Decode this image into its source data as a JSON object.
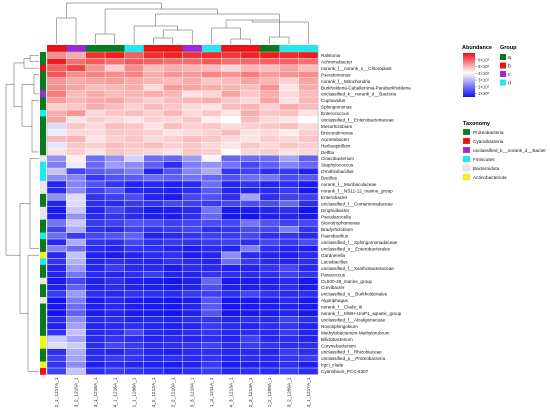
{
  "chart_data": {
    "type": "heatmap",
    "title": "",
    "columns": [
      "2_1_1217A_1",
      "3_2_1215A_1",
      "3_1_1216A_1",
      "4_1_1216A_1",
      "1_1_1208A_1",
      "4_2_1212A_1",
      "2_2_1210A_1",
      "3_3_1210A_1",
      "1_3_1211A_1",
      "4_3_1213A_1",
      "2_3_1213A_1",
      "1_2_1209A_1",
      "3_2_1209A_1",
      "4_1_1217A_1"
    ],
    "column_group": [
      "b",
      "c",
      "a",
      "a",
      "d",
      "b",
      "b",
      "c",
      "d",
      "b",
      "b",
      "a",
      "d",
      "d"
    ],
    "rows": [
      "Ralstonia",
      "Achromobacter",
      "norank_f__norank_o__Chloroplast",
      "Pseudomonas",
      "norank_f__Mitochondria",
      "Burkholderia-Caballeronia-Paraburkholderia",
      "unclassified_k__norank_d__Bacteria",
      "Cupriavidus",
      "Sphingomonas",
      "Enterococcus",
      "unclassified_f__Enterobacteriaceae",
      "Mesorhizobium",
      "Brevundimonas",
      "Acinetobacter",
      "Herbaspirillum",
      "Delftia",
      "Cloacibacterium",
      "Staphylococcus",
      "Ornithinibacillus",
      "Bacillus",
      "norank_f__Muribaculaceae",
      "norank_f__NS11-12_marine_group",
      "Enterobacter",
      "unclassified_f__Comamonadaceae",
      "Dinghuibacter",
      "Pseudarcicella",
      "Stenotrophomonas",
      "Bradyrhizobium",
      "Paenibacillus",
      "unclassified_f__Sphingomonadaceae",
      "unclassified_o__Enterobacterales",
      "Gardnerella",
      "Lactobacillus",
      "unclassified_f__Xanthobacteraceae",
      "Paracoccus",
      "CL500-29_marine_group",
      "Curvibacter",
      "unclassified_o__Burkholderiales",
      "Algoriphagus",
      "norank_f__Clade_III",
      "norank_f__MWH-UniP1_aquatic_group",
      "unclassified_f__Alcaligenaceae",
      "Novosphingobium",
      "Methylobacterium-Methylorubrum",
      "Bifidobacterium",
      "Corynebacterium",
      "unclassified_f__Rhizobiaceae",
      "unclassified_p__Proteobacteria",
      "hgcI_clade",
      "Cyanobium_PCC-6307"
    ],
    "row_taxonomy": [
      "Proteobacteria",
      "Proteobacteria",
      "Cyanobacteria",
      "Proteobacteria",
      "Proteobacteria",
      "Proteobacteria",
      "unclassified_k__norank_d__Bacter",
      "Proteobacteria",
      "Proteobacteria",
      "Firmicutes",
      "Proteobacteria",
      "Proteobacteria",
      "Proteobacteria",
      "Proteobacteria",
      "Proteobacteria",
      "Proteobacteria",
      "Bacteroidota",
      "Firmicutes",
      "Firmicutes",
      "Firmicutes",
      "Bacteroidota",
      "Bacteroidota",
      "Proteobacteria",
      "Proteobacteria",
      "Bacteroidota",
      "Bacteroidota",
      "Proteobacteria",
      "Proteobacteria",
      "Firmicutes",
      "Proteobacteria",
      "Proteobacteria",
      "Actinobacteriota",
      "Firmicutes",
      "Proteobacteria",
      "Proteobacteria",
      "Bacteroidota",
      "Proteobacteria",
      "Proteobacteria",
      "Bacteroidota",
      "Proteobacteria",
      "Proteobacteria",
      "Proteobacteria",
      "Proteobacteria",
      "Proteobacteria",
      "Actinobacteriota",
      "Actinobacteriota",
      "Proteobacteria",
      "Proteobacteria",
      "Actinobacteriota",
      "Cyanobacteria"
    ],
    "values": [
      [
        5.2,
        4.8,
        6.5,
        6.8,
        5.8,
        6.6,
        6.7,
        6.5,
        6.6,
        6.4,
        6.7,
        6.8,
        6.6,
        6.8
      ],
      [
        6.8,
        5.6,
        5.9,
        5.6,
        5.9,
        5.8,
        5.6,
        5.6,
        5.9,
        5.6,
        5.7,
        5.8,
        5.8,
        5.6
      ],
      [
        5.8,
        6.2,
        5.1,
        4.4,
        5.2,
        4.6,
        4.8,
        4.7,
        4.6,
        4.3,
        4.7,
        4.6,
        4.9,
        4.6
      ],
      [
        5.9,
        5.2,
        5.3,
        5.2,
        5.3,
        4.8,
        5.1,
        5.0,
        5.3,
        5.1,
        5.4,
        5.0,
        5.1,
        5.2
      ],
      [
        5.1,
        4.8,
        4.9,
        5.0,
        4.8,
        4.7,
        4.6,
        4.8,
        4.5,
        4.6,
        4.9,
        4.7,
        4.4,
        4.9
      ],
      [
        5.2,
        4.9,
        4.6,
        4.7,
        4.8,
        4.3,
        5.0,
        4.9,
        4.8,
        4.7,
        4.6,
        5.1,
        4.2,
        4.8
      ],
      [
        5.4,
        4.6,
        4.8,
        4.6,
        4.7,
        4.8,
        4.7,
        4.2,
        4.3,
        4.9,
        4.5,
        4.8,
        4.3,
        4.6
      ],
      [
        5.0,
        4.7,
        4.8,
        4.9,
        4.6,
        4.4,
        4.6,
        4.7,
        4.8,
        4.5,
        4.3,
        4.9,
        4.2,
        4.7
      ],
      [
        4.4,
        4.5,
        4.8,
        4.6,
        4.4,
        4.6,
        4.5,
        4.3,
        4.2,
        4.6,
        4.7,
        4.4,
        4.8,
        4.6
      ],
      [
        4.8,
        5.1,
        4.3,
        4.5,
        4.6,
        4.4,
        4.7,
        4.3,
        4.5,
        4.2,
        4.8,
        4.5,
        4.6,
        4.2
      ],
      [
        4.9,
        4.2,
        4.4,
        4.3,
        4.2,
        4.4,
        4.3,
        4.5,
        4.1,
        4.0,
        4.6,
        4.3,
        4.2,
        4.0
      ],
      [
        3.6,
        4.5,
        4.3,
        4.6,
        4.5,
        4.2,
        4.6,
        4.4,
        4.5,
        4.3,
        4.4,
        4.5,
        4.6,
        4.3
      ],
      [
        3.8,
        4.3,
        4.3,
        4.5,
        4.5,
        4.4,
        4.2,
        4.3,
        4.4,
        4.6,
        4.2,
        4.3,
        4.1,
        4.4
      ],
      [
        4.6,
        4.7,
        4.2,
        4.4,
        4.5,
        4.3,
        4.4,
        4.6,
        4.5,
        4.3,
        4.2,
        4.4,
        4.3,
        4.5
      ],
      [
        3.7,
        4.5,
        4.4,
        4.6,
        4.5,
        4.6,
        4.4,
        4.5,
        4.3,
        4.2,
        4.5,
        4.3,
        4.5,
        4.4
      ],
      [
        4.2,
        4.4,
        4.2,
        4.5,
        4.4,
        4.3,
        4.2,
        4.5,
        4.4,
        4.0,
        4.3,
        4.4,
        4.2,
        4.3
      ],
      [
        2.7,
        4.1,
        2.2,
        2.7,
        3.5,
        2.2,
        2.1,
        2.8,
        3.9,
        2.1,
        2.2,
        2.2,
        2.9,
        2.0
      ],
      [
        2.4,
        3.8,
        2.1,
        2.8,
        2.6,
        2.0,
        1.2,
        2.4,
        2.7,
        2.3,
        1.6,
        2.0,
        2.5,
        2.1
      ],
      [
        3.3,
        1.6,
        1.9,
        2.1,
        2.4,
        1.0,
        1.8,
        2.5,
        3.0,
        1.3,
        1.5,
        1.2,
        1.4,
        0.9
      ],
      [
        2.6,
        2.5,
        1.4,
        1.8,
        1.9,
        2.2,
        2.0,
        2.3,
        2.1,
        1.8,
        2.2,
        2.3,
        1.7,
        1.9
      ],
      [
        1.0,
        2.5,
        1.8,
        1.3,
        1.0,
        1.1,
        0.9,
        1.1,
        2.2,
        1.0,
        1.3,
        1.0,
        1.2,
        0.8
      ],
      [
        1.1,
        2.6,
        1.5,
        1.9,
        1.0,
        1.0,
        0.9,
        1.2,
        1.9,
        1.0,
        1.0,
        1.1,
        1.4,
        0.7
      ],
      [
        2.7,
        3.6,
        1.3,
        1.5,
        1.7,
        1.0,
        0.8,
        1.6,
        1.8,
        1.2,
        2.9,
        1.2,
        1.5,
        1.5
      ],
      [
        1.0,
        3.6,
        1.2,
        1.1,
        1.4,
        1.3,
        1.6,
        1.5,
        1.4,
        1.6,
        1.7,
        1.7,
        2.1,
        1.2
      ],
      [
        0.8,
        3.4,
        1.0,
        1.6,
        1.2,
        0.8,
        0.9,
        1.1,
        2.3,
        0.7,
        0.8,
        1.0,
        1.2,
        0.6
      ],
      [
        0.9,
        2.7,
        1.1,
        1.3,
        1.1,
        0.9,
        0.8,
        1.2,
        2.1,
        0.7,
        0.6,
        0.9,
        1.0,
        0.8
      ],
      [
        2.3,
        3.4,
        1.4,
        1.5,
        1.8,
        1.7,
        1.5,
        1.6,
        1.7,
        1.6,
        2.3,
        1.8,
        1.5,
        1.6
      ],
      [
        1.5,
        3.0,
        1.2,
        1.1,
        1.5,
        1.3,
        1.4,
        1.6,
        1.2,
        1.3,
        1.7,
        1.6,
        2.4,
        1.3
      ],
      [
        2.2,
        1.4,
        1.6,
        1.8,
        2.0,
        1.0,
        1.1,
        1.3,
        1.5,
        1.4,
        1.6,
        1.2,
        1.3,
        1.1
      ],
      [
        1.0,
        3.0,
        1.3,
        1.2,
        1.6,
        1.2,
        1.4,
        1.3,
        1.4,
        1.5,
        1.2,
        1.6,
        1.4,
        1.7
      ],
      [
        2.5,
        2.2,
        1.1,
        1.0,
        1.3,
        1.2,
        1.0,
        0.9,
        1.1,
        1.0,
        2.4,
        1.2,
        1.0,
        0.9
      ],
      [
        1.1,
        3.3,
        0.9,
        0.8,
        1.0,
        1.1,
        1.2,
        0.8,
        1.0,
        2.6,
        1.1,
        1.0,
        0.9,
        1.1
      ],
      [
        1.3,
        3.1,
        1.0,
        1.2,
        1.1,
        1.0,
        1.3,
        1.1,
        1.0,
        2.2,
        1.4,
        1.1,
        1.0,
        1.2
      ],
      [
        1.0,
        2.8,
        1.0,
        1.4,
        1.1,
        1.1,
        0.8,
        1.2,
        1.1,
        0.9,
        1.0,
        1.3,
        1.6,
        1.1
      ],
      [
        1.0,
        2.3,
        1.1,
        1.0,
        1.2,
        1.4,
        1.0,
        1.0,
        1.3,
        1.2,
        1.1,
        1.2,
        1.5,
        1.3
      ],
      [
        0.7,
        1.6,
        0.9,
        1.2,
        0.9,
        0.8,
        0.6,
        0.9,
        2.1,
        0.7,
        0.8,
        0.9,
        1.1,
        0.7
      ],
      [
        0.9,
        2.0,
        1.0,
        1.1,
        1.0,
        0.9,
        0.8,
        1.0,
        1.7,
        0.9,
        0.9,
        1.0,
        1.2,
        0.8
      ],
      [
        1.4,
        2.8,
        1.2,
        1.1,
        1.3,
        1.2,
        1.1,
        1.4,
        1.5,
        1.2,
        1.6,
        1.3,
        1.2,
        1.2
      ],
      [
        0.6,
        2.4,
        0.8,
        1.0,
        0.8,
        0.7,
        0.6,
        0.8,
        1.8,
        0.6,
        0.7,
        0.8,
        1.1,
        0.7
      ],
      [
        0.7,
        2.2,
        0.9,
        1.1,
        0.9,
        0.8,
        0.7,
        1.0,
        1.9,
        0.7,
        0.8,
        0.9,
        1.0,
        0.8
      ],
      [
        0.6,
        2.0,
        0.8,
        1.0,
        0.8,
        0.7,
        0.6,
        0.9,
        1.8,
        0.6,
        0.7,
        0.8,
        1.0,
        0.7
      ],
      [
        1.1,
        2.6,
        1.1,
        1.2,
        1.0,
        1.1,
        1.0,
        1.2,
        1.3,
        1.0,
        1.2,
        1.1,
        1.5,
        1.2
      ],
      [
        0.9,
        2.9,
        1.0,
        1.1,
        1.2,
        1.0,
        0.9,
        1.0,
        1.4,
        1.1,
        1.0,
        1.2,
        1.3,
        1.0
      ],
      [
        1.3,
        3.3,
        1.1,
        1.2,
        1.6,
        1.1,
        1.0,
        1.2,
        1.3,
        1.0,
        1.2,
        1.1,
        1.4,
        1.0
      ],
      [
        3.4,
        2.9,
        1.1,
        1.3,
        1.2,
        1.0,
        1.1,
        1.0,
        1.2,
        1.0,
        1.5,
        1.1,
        1.2,
        1.0
      ],
      [
        3.6,
        3.4,
        1.2,
        1.6,
        1.4,
        1.1,
        1.2,
        1.3,
        1.5,
        1.1,
        1.4,
        1.3,
        1.2,
        1.2
      ],
      [
        1.2,
        3.0,
        1.1,
        1.0,
        1.3,
        1.0,
        0.9,
        1.1,
        1.2,
        1.0,
        1.1,
        1.0,
        1.4,
        1.2
      ],
      [
        1.5,
        2.9,
        1.2,
        1.4,
        1.3,
        1.1,
        1.2,
        1.1,
        1.3,
        1.0,
        1.2,
        1.1,
        1.3,
        1.4
      ],
      [
        1.3,
        2.6,
        0.9,
        1.1,
        1.0,
        0.9,
        0.8,
        1.0,
        1.4,
        0.8,
        0.9,
        1.0,
        1.2,
        0.9
      ],
      [
        1.5,
        3.3,
        1.2,
        1.4,
        1.3,
        1.1,
        1.0,
        1.2,
        1.4,
        1.0,
        1.2,
        1.1,
        1.4,
        1.2
      ]
    ],
    "color_scale": {
      "ticks": [
        "6×10⁵",
        "5×10⁵",
        "4×10⁵",
        "3×10⁵",
        "2×10⁵",
        "1×10⁵"
      ],
      "tick_values": [
        6,
        5,
        4,
        3,
        2,
        1
      ],
      "range": [
        0.5,
        7.0
      ],
      "colors": [
        "#1111ee",
        "#ffffff",
        "#ee1111"
      ],
      "mid": 4.0
    },
    "legend": {
      "abundance_title": "Abundance",
      "group_title": "Group",
      "groups": [
        {
          "label": "a",
          "color": "#0a7a1e"
        },
        {
          "label": "b",
          "color": "#ee1111"
        },
        {
          "label": "c",
          "color": "#9b2bd8"
        },
        {
          "label": "d",
          "color": "#22e6f0"
        }
      ],
      "taxonomy_title": "Taxonomy",
      "taxonomy": [
        {
          "label": "Proteobacteria",
          "color": "#0a7a1e"
        },
        {
          "label": "Cyanobacteria",
          "color": "#ee1111"
        },
        {
          "label": "unclassified_k__norank_d__Bacter",
          "color": "#9b2bd8"
        },
        {
          "label": "Firmicutes",
          "color": "#22e6f0"
        },
        {
          "label": "Bacteroidota",
          "color": "#e8e8e8"
        },
        {
          "label": "Actinobacteriota",
          "color": "#f5f514"
        }
      ]
    },
    "legend_placement": "right",
    "grid": true
  }
}
